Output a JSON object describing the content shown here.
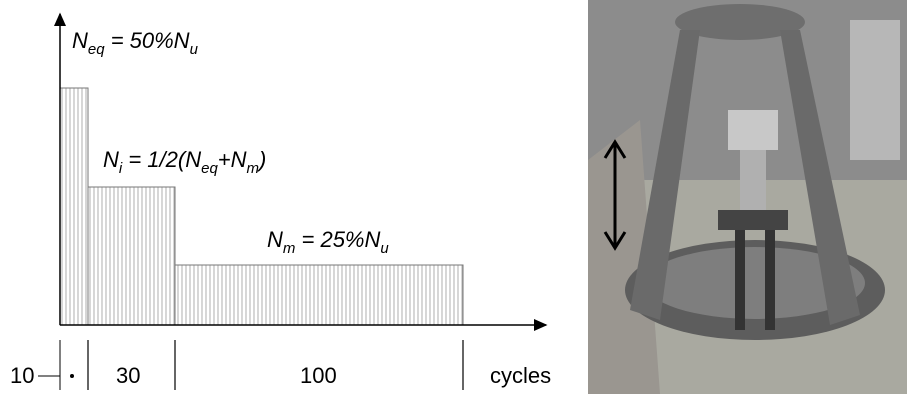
{
  "blocks": [
    {
      "label": [
        {
          "t": "N"
        },
        {
          "sub": "eq"
        },
        {
          "t": " = 50%N"
        },
        {
          "sub": "u"
        }
      ],
      "duration": "10"
    },
    {
      "label": [
        {
          "t": "N"
        },
        {
          "sub": "i"
        },
        {
          "t": " = 1/2(N"
        },
        {
          "sub": "eq"
        },
        {
          "t": "+N"
        },
        {
          "sub": "m"
        },
        {
          "t": ")"
        }
      ],
      "duration": "30"
    },
    {
      "label": [
        {
          "t": "N"
        },
        {
          "sub": "m"
        },
        {
          "t": " = 25%N"
        },
        {
          "sub": "u"
        }
      ],
      "duration": "100"
    }
  ],
  "x_axis_label": "cycles"
}
